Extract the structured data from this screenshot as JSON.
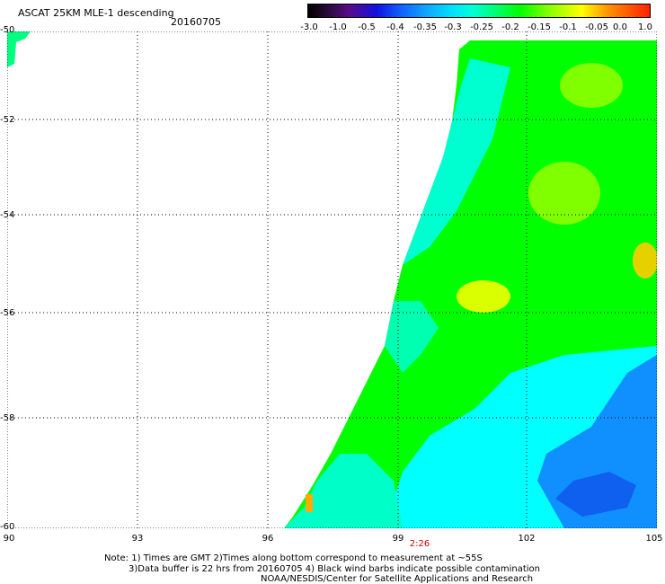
{
  "header": {
    "title": "ASCAT 25KM MLE-1 descending",
    "date": "20160705"
  },
  "colorbar": {
    "labels": [
      "-3.0",
      "-1.0",
      "-0.5",
      "-0.4",
      "-0.35",
      "-0.3",
      "-0.25",
      "-0.2",
      "-0.15",
      "-0.1",
      "-0.05",
      "0.0",
      "1.0"
    ]
  },
  "axes": {
    "y_ticks": [
      "-50",
      "-52",
      "-54",
      "-56",
      "-58",
      "-60"
    ],
    "x_ticks": [
      "90",
      "93",
      "96",
      "99",
      "102",
      "105"
    ]
  },
  "time_label": "2:26",
  "notes": {
    "line1": "Note: 1) Times are GMT 2)Times along bottom correspond to measurement at ~55S",
    "line2": "3)Data buffer is 22 hrs from 20160705 4) Black wind barbs indicate possible contamination",
    "line3": "NOAA/NESDIS/Center for Satellite Applications and Research"
  },
  "colors": {
    "swath_green": "#00ff00",
    "swath_cyan": "#00ffff",
    "swath_blue": "#1090ff",
    "swath_yellow": "#ffff00"
  }
}
